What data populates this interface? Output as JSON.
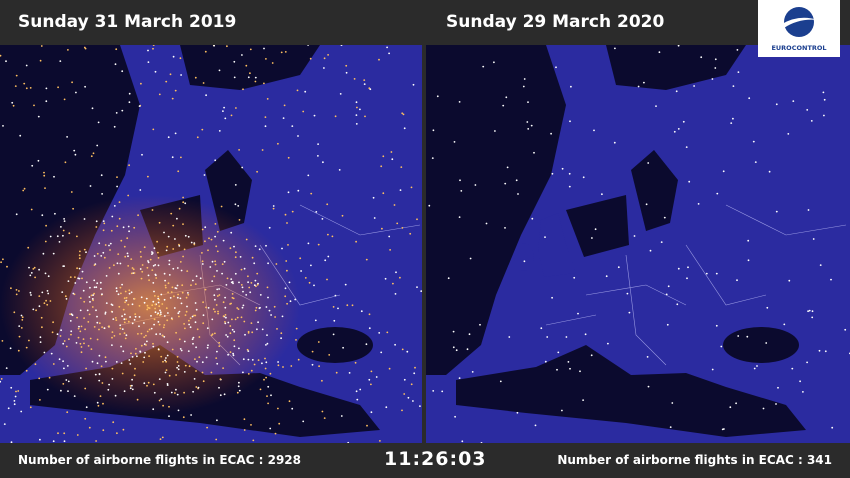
{
  "header": {
    "left_title": "Sunday 31 March 2019",
    "right_title": "Sunday 29 March 2020"
  },
  "logo": {
    "text": "EUROCONTROL"
  },
  "footer": {
    "left_label": "Number of airborne flights in ECAC :",
    "left_count": 2928,
    "clock": "11:26:03",
    "right_label": "Number of airborne flights in ECAC :",
    "right_count": 341
  }
}
